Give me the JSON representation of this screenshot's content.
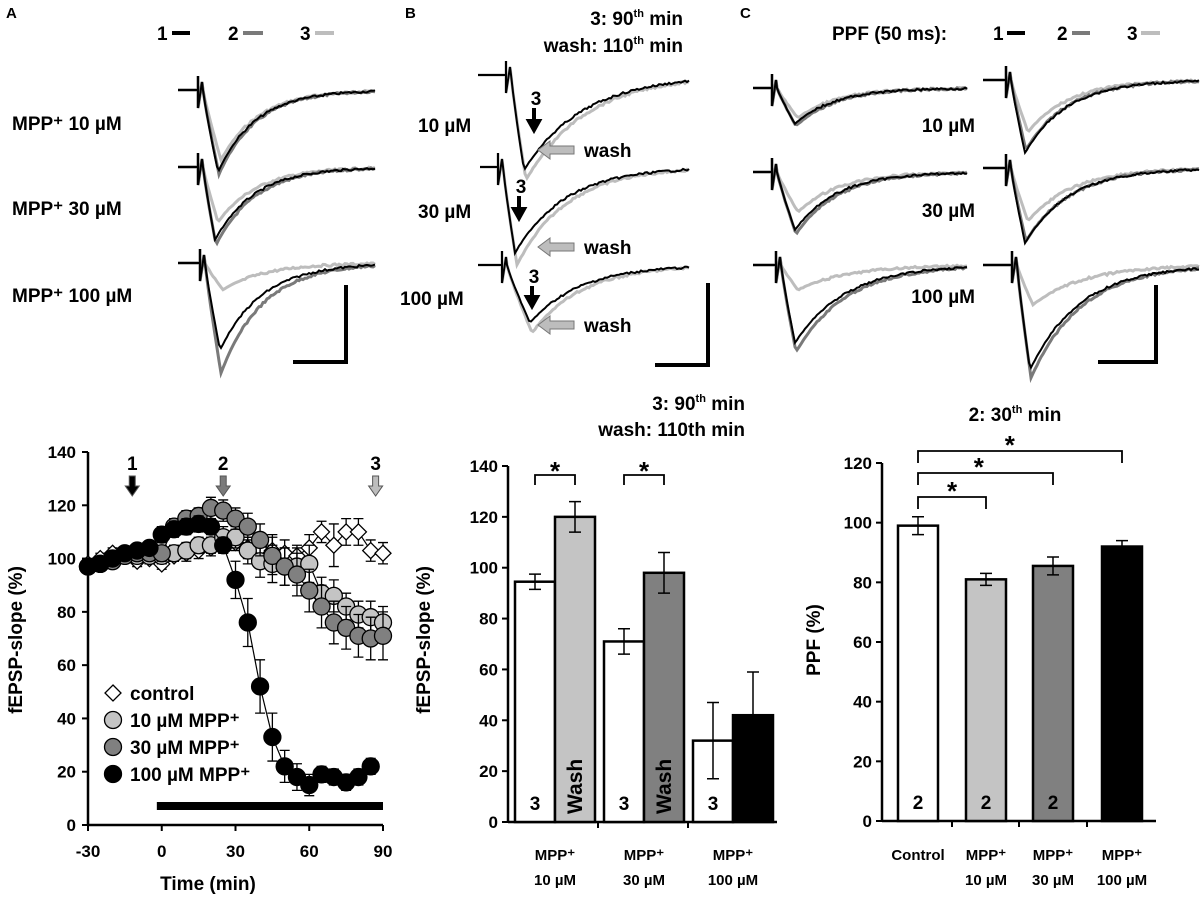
{
  "panel_labels": {
    "a": "A",
    "b": "B",
    "c": "C"
  },
  "colors": {
    "trace_1": "#000000",
    "trace_2": "#7a7a7a",
    "trace_3": "#bdbdbd",
    "control": "#ffffff",
    "mpp10": "#c4c4c4",
    "mpp30": "#808080",
    "mpp100": "#000000"
  },
  "panel_a": {
    "legend": [
      "1",
      "2",
      "3"
    ],
    "trace_labels": [
      "MPP⁺ 10 µM",
      "MPP⁺ 30 µM",
      "MPP⁺ 100 µM"
    ]
  },
  "panel_b": {
    "title_line1": {
      "pre": "3:   90",
      "sup": "th",
      "post": " min"
    },
    "title_line2": {
      "pre": "wash: 110",
      "sup": "th",
      "post": " min"
    },
    "trace_labels": [
      "10 µM",
      "30 µM",
      "100 µM"
    ],
    "marker_label": "3",
    "wash_label": "wash"
  },
  "panel_c": {
    "legend_prefix": "PPF (50 ms):",
    "legend": [
      "1",
      "2",
      "3"
    ],
    "trace_labels": [
      "10 µM",
      "30 µM",
      "100 µM"
    ]
  },
  "chart_data": [
    {
      "type": "scatter",
      "xlabel": "Time (min)",
      "ylabel": "fEPSP-slope (%)",
      "xlim": [
        -30,
        90
      ],
      "ylim": [
        0,
        140
      ],
      "xticks": [
        "-30",
        "0",
        "30",
        "60",
        "90"
      ],
      "yticks": [
        "0",
        "20",
        "40",
        "60",
        "80",
        "100",
        "120",
        "140"
      ],
      "time_markers": [
        {
          "label": "1",
          "x": -12,
          "color": "#000000"
        },
        {
          "label": "2",
          "x": 25,
          "color": "#7a7a7a"
        },
        {
          "label": "3",
          "x": 87,
          "color": "#bdbdbd"
        }
      ],
      "drug_bar": [
        -2,
        90
      ],
      "legend_position": "bottom-left",
      "series": [
        {
          "name": "control",
          "marker": "diamond",
          "color": "#ffffff",
          "x": [
            -30,
            -25,
            -20,
            -15,
            -10,
            -5,
            0,
            5,
            10,
            15,
            20,
            25,
            30,
            35,
            40,
            45,
            50,
            55,
            60,
            65,
            70,
            75,
            80,
            85,
            90
          ],
          "y": [
            98,
            100,
            102,
            101,
            99,
            100,
            98,
            101,
            102,
            103,
            104,
            105,
            106,
            104,
            104,
            103,
            102,
            101,
            104,
            110,
            105,
            110,
            110,
            103,
            102
          ],
          "err": [
            2,
            2,
            2,
            2,
            2,
            2,
            2,
            2,
            3,
            3,
            3,
            3,
            3,
            4,
            5,
            6,
            5,
            4,
            5,
            4,
            8,
            5,
            5,
            4,
            4
          ]
        },
        {
          "name": "10 µM MPP⁺",
          "marker": "circle",
          "color": "#c4c4c4",
          "x": [
            -30,
            -25,
            -20,
            -15,
            -10,
            -5,
            0,
            5,
            10,
            15,
            20,
            25,
            30,
            35,
            40,
            45,
            50,
            55,
            60,
            65,
            70,
            75,
            80,
            85,
            90
          ],
          "y": [
            97,
            98,
            100,
            101,
            101,
            101,
            101,
            102,
            103,
            105,
            105,
            108,
            108,
            103,
            99,
            98,
            97,
            97,
            98,
            87,
            86,
            82,
            79,
            78,
            76
          ],
          "err": [
            2,
            2,
            2,
            2,
            2,
            2,
            3,
            3,
            3,
            3,
            3,
            4,
            4,
            5,
            6,
            7,
            7,
            7,
            7,
            6,
            6,
            5,
            5,
            6,
            6
          ]
        },
        {
          "name": "30 µM MPP⁺",
          "marker": "circle",
          "color": "#808080",
          "x": [
            -30,
            -25,
            -20,
            -15,
            -10,
            -5,
            0,
            5,
            10,
            15,
            20,
            25,
            30,
            35,
            40,
            45,
            50,
            55,
            60,
            65,
            70,
            75,
            80,
            85,
            90
          ],
          "y": [
            97,
            98,
            99,
            101,
            102,
            102,
            102,
            112,
            115,
            116,
            119,
            118,
            115,
            112,
            107,
            101,
            97,
            94,
            88,
            82,
            76,
            74,
            71,
            70,
            71
          ],
          "err": [
            2,
            2,
            2,
            2,
            2,
            2,
            3,
            3,
            3,
            3,
            4,
            4,
            4,
            5,
            6,
            7,
            7,
            8,
            8,
            8,
            8,
            8,
            8,
            8,
            9
          ]
        },
        {
          "name": "100 µM MPP⁺",
          "marker": "circle",
          "color": "#000000",
          "x": [
            -30,
            -25,
            -20,
            -15,
            -10,
            -5,
            0,
            5,
            10,
            15,
            20,
            25,
            30,
            35,
            40,
            45,
            50,
            55,
            60,
            65,
            70,
            75,
            80,
            85
          ],
          "y": [
            97,
            98,
            100,
            102,
            103,
            104,
            109,
            111,
            112,
            113,
            112,
            105,
            92,
            76,
            52,
            33,
            22,
            18,
            15,
            19,
            18,
            16,
            18,
            22
          ],
          "err": [
            2,
            2,
            2,
            2,
            2,
            2,
            3,
            3,
            3,
            3,
            3,
            3,
            7,
            9,
            10,
            9,
            6,
            5,
            4,
            3,
            3,
            3,
            3,
            3
          ]
        }
      ]
    },
    {
      "type": "bar",
      "title": "3: 90th min / wash: 110th min",
      "ylabel": "fEPSP-slope (%)",
      "ylim": [
        0,
        140
      ],
      "yticks": [
        "0",
        "20",
        "40",
        "60",
        "80",
        "100",
        "120",
        "140"
      ],
      "groups": [
        {
          "label_line1": "MPP⁺",
          "label_line2": "10 µM",
          "bars": [
            {
              "label": "3",
              "value": 94.5,
              "err": 3,
              "color": "#ffffff",
              "text_color": "#000000"
            },
            {
              "label": "Wash",
              "value": 120,
              "err": 6,
              "color": "#c4c4c4",
              "text_color": "#000000"
            }
          ],
          "significant": true
        },
        {
          "label_line1": "MPP⁺",
          "label_line2": "30 µM",
          "bars": [
            {
              "label": "3",
              "value": 71,
              "err": 5,
              "color": "#ffffff",
              "text_color": "#000000"
            },
            {
              "label": "Wash",
              "value": 98,
              "err": 8,
              "color": "#808080",
              "text_color": "#000000"
            }
          ],
          "significant": true
        },
        {
          "label_line1": "MPP⁺",
          "label_line2": "100 µM",
          "bars": [
            {
              "label": "3",
              "value": 32,
              "err": 15,
              "color": "#ffffff",
              "text_color": "#000000"
            },
            {
              "label": "Wash",
              "value": 42,
              "err": 17,
              "color": "#000000",
              "text_color": "#ffffff"
            }
          ],
          "significant": false
        }
      ],
      "significance_label": "*"
    },
    {
      "type": "bar",
      "title": {
        "pre": "2: 30",
        "sup": "th",
        "post": " min"
      },
      "ylabel": "PPF (%)",
      "ylim": [
        0,
        120
      ],
      "yticks": [
        "0",
        "20",
        "40",
        "60",
        "80",
        "100",
        "120"
      ],
      "bars": [
        {
          "label_line1": "Control",
          "label_line2": "",
          "inner_label": "2",
          "value": 99,
          "err": 3,
          "color": "#ffffff",
          "text_color": "#000000"
        },
        {
          "label_line1": "MPP⁺",
          "label_line2": "10 µM",
          "inner_label": "2",
          "value": 81,
          "err": 2,
          "color": "#c4c4c4",
          "text_color": "#000000"
        },
        {
          "label_line1": "MPP⁺",
          "label_line2": "30 µM",
          "inner_label": "2",
          "value": 85.5,
          "err": 3,
          "color": "#808080",
          "text_color": "#000000"
        },
        {
          "label_line1": "MPP⁺",
          "label_line2": "100 µM",
          "inner_label": "2",
          "value": 92,
          "err": 2,
          "color": "#000000",
          "text_color": "#ffffff"
        }
      ],
      "significance_label": "*",
      "comparisons": [
        [
          0,
          1
        ],
        [
          0,
          2
        ],
        [
          0,
          3
        ]
      ]
    }
  ]
}
